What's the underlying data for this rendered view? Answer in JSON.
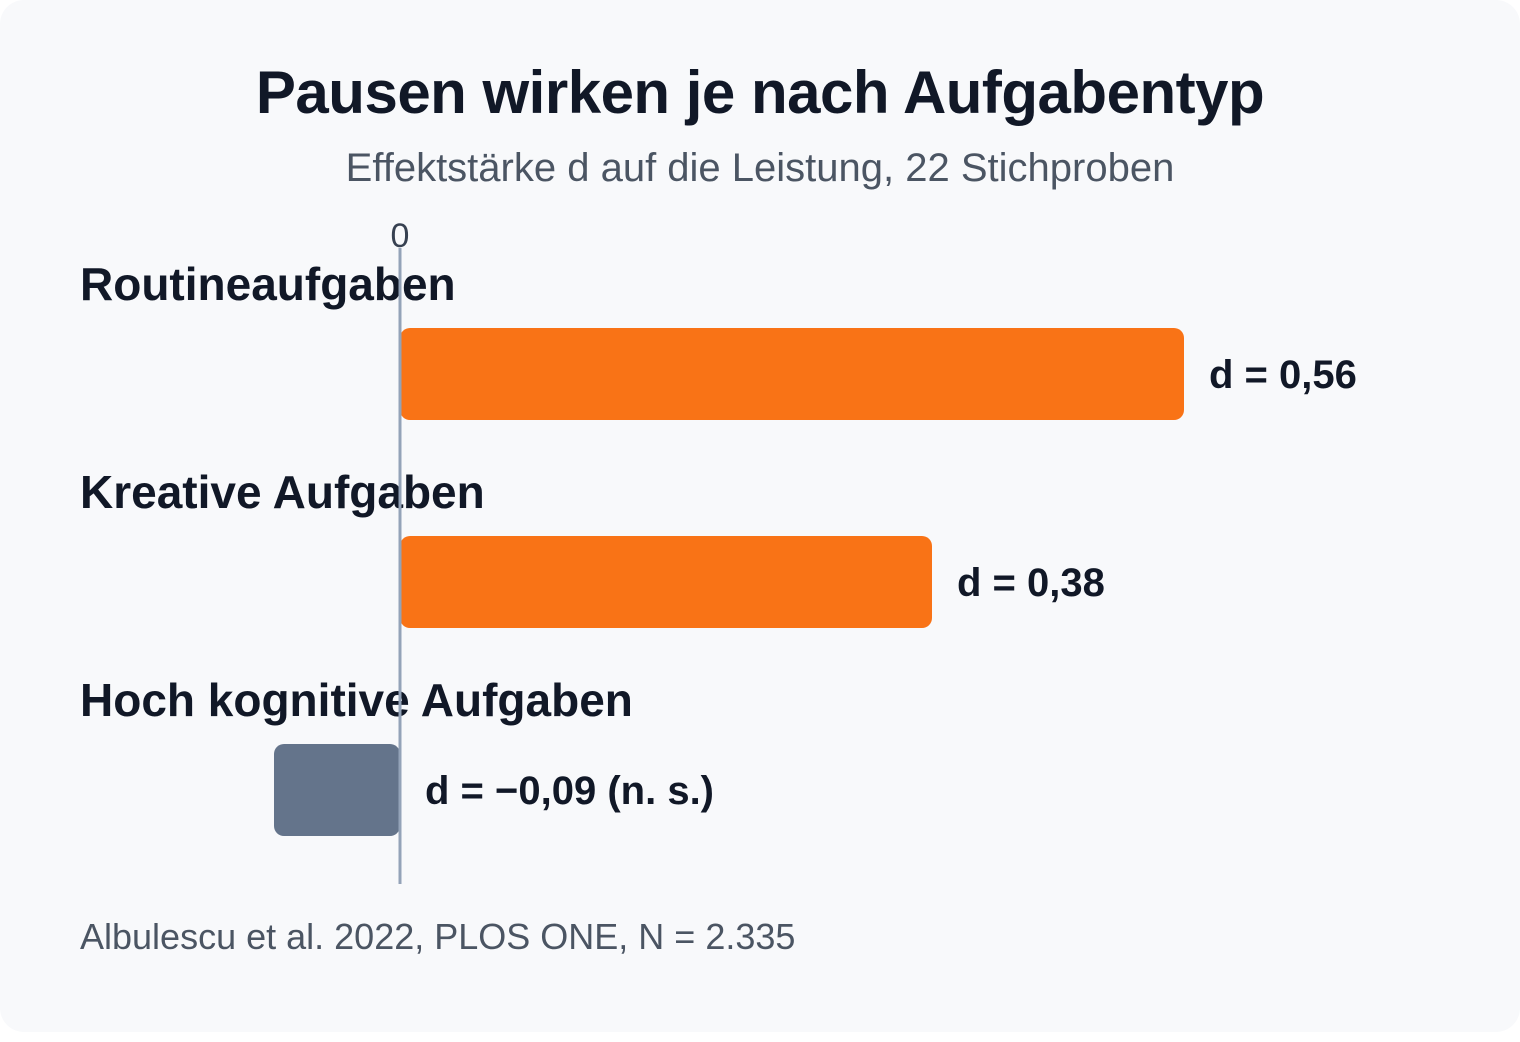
{
  "chart_data": {
    "type": "bar",
    "orientation": "horizontal",
    "title": "Pausen wirken je nach Aufgabentyp",
    "subtitle": "Effektstärke d auf die Leistung, 22 Stichproben",
    "categories": [
      "Routineaufgaben",
      "Kreative Aufgaben",
      "Hoch kognitive Aufgaben"
    ],
    "values": [
      0.56,
      0.38,
      -0.09
    ],
    "value_labels": [
      "d = 0,56",
      "d = 0,38",
      "d = −0,09 (n. s.)"
    ],
    "colors": [
      "#f97316",
      "#f97316",
      "#64748b"
    ],
    "zero_tick_label": "0",
    "xlim": [
      -0.2,
      0.77
    ],
    "grid": false,
    "source": "Albulescu et al. 2022, PLOS ONE, N = 2.335"
  }
}
